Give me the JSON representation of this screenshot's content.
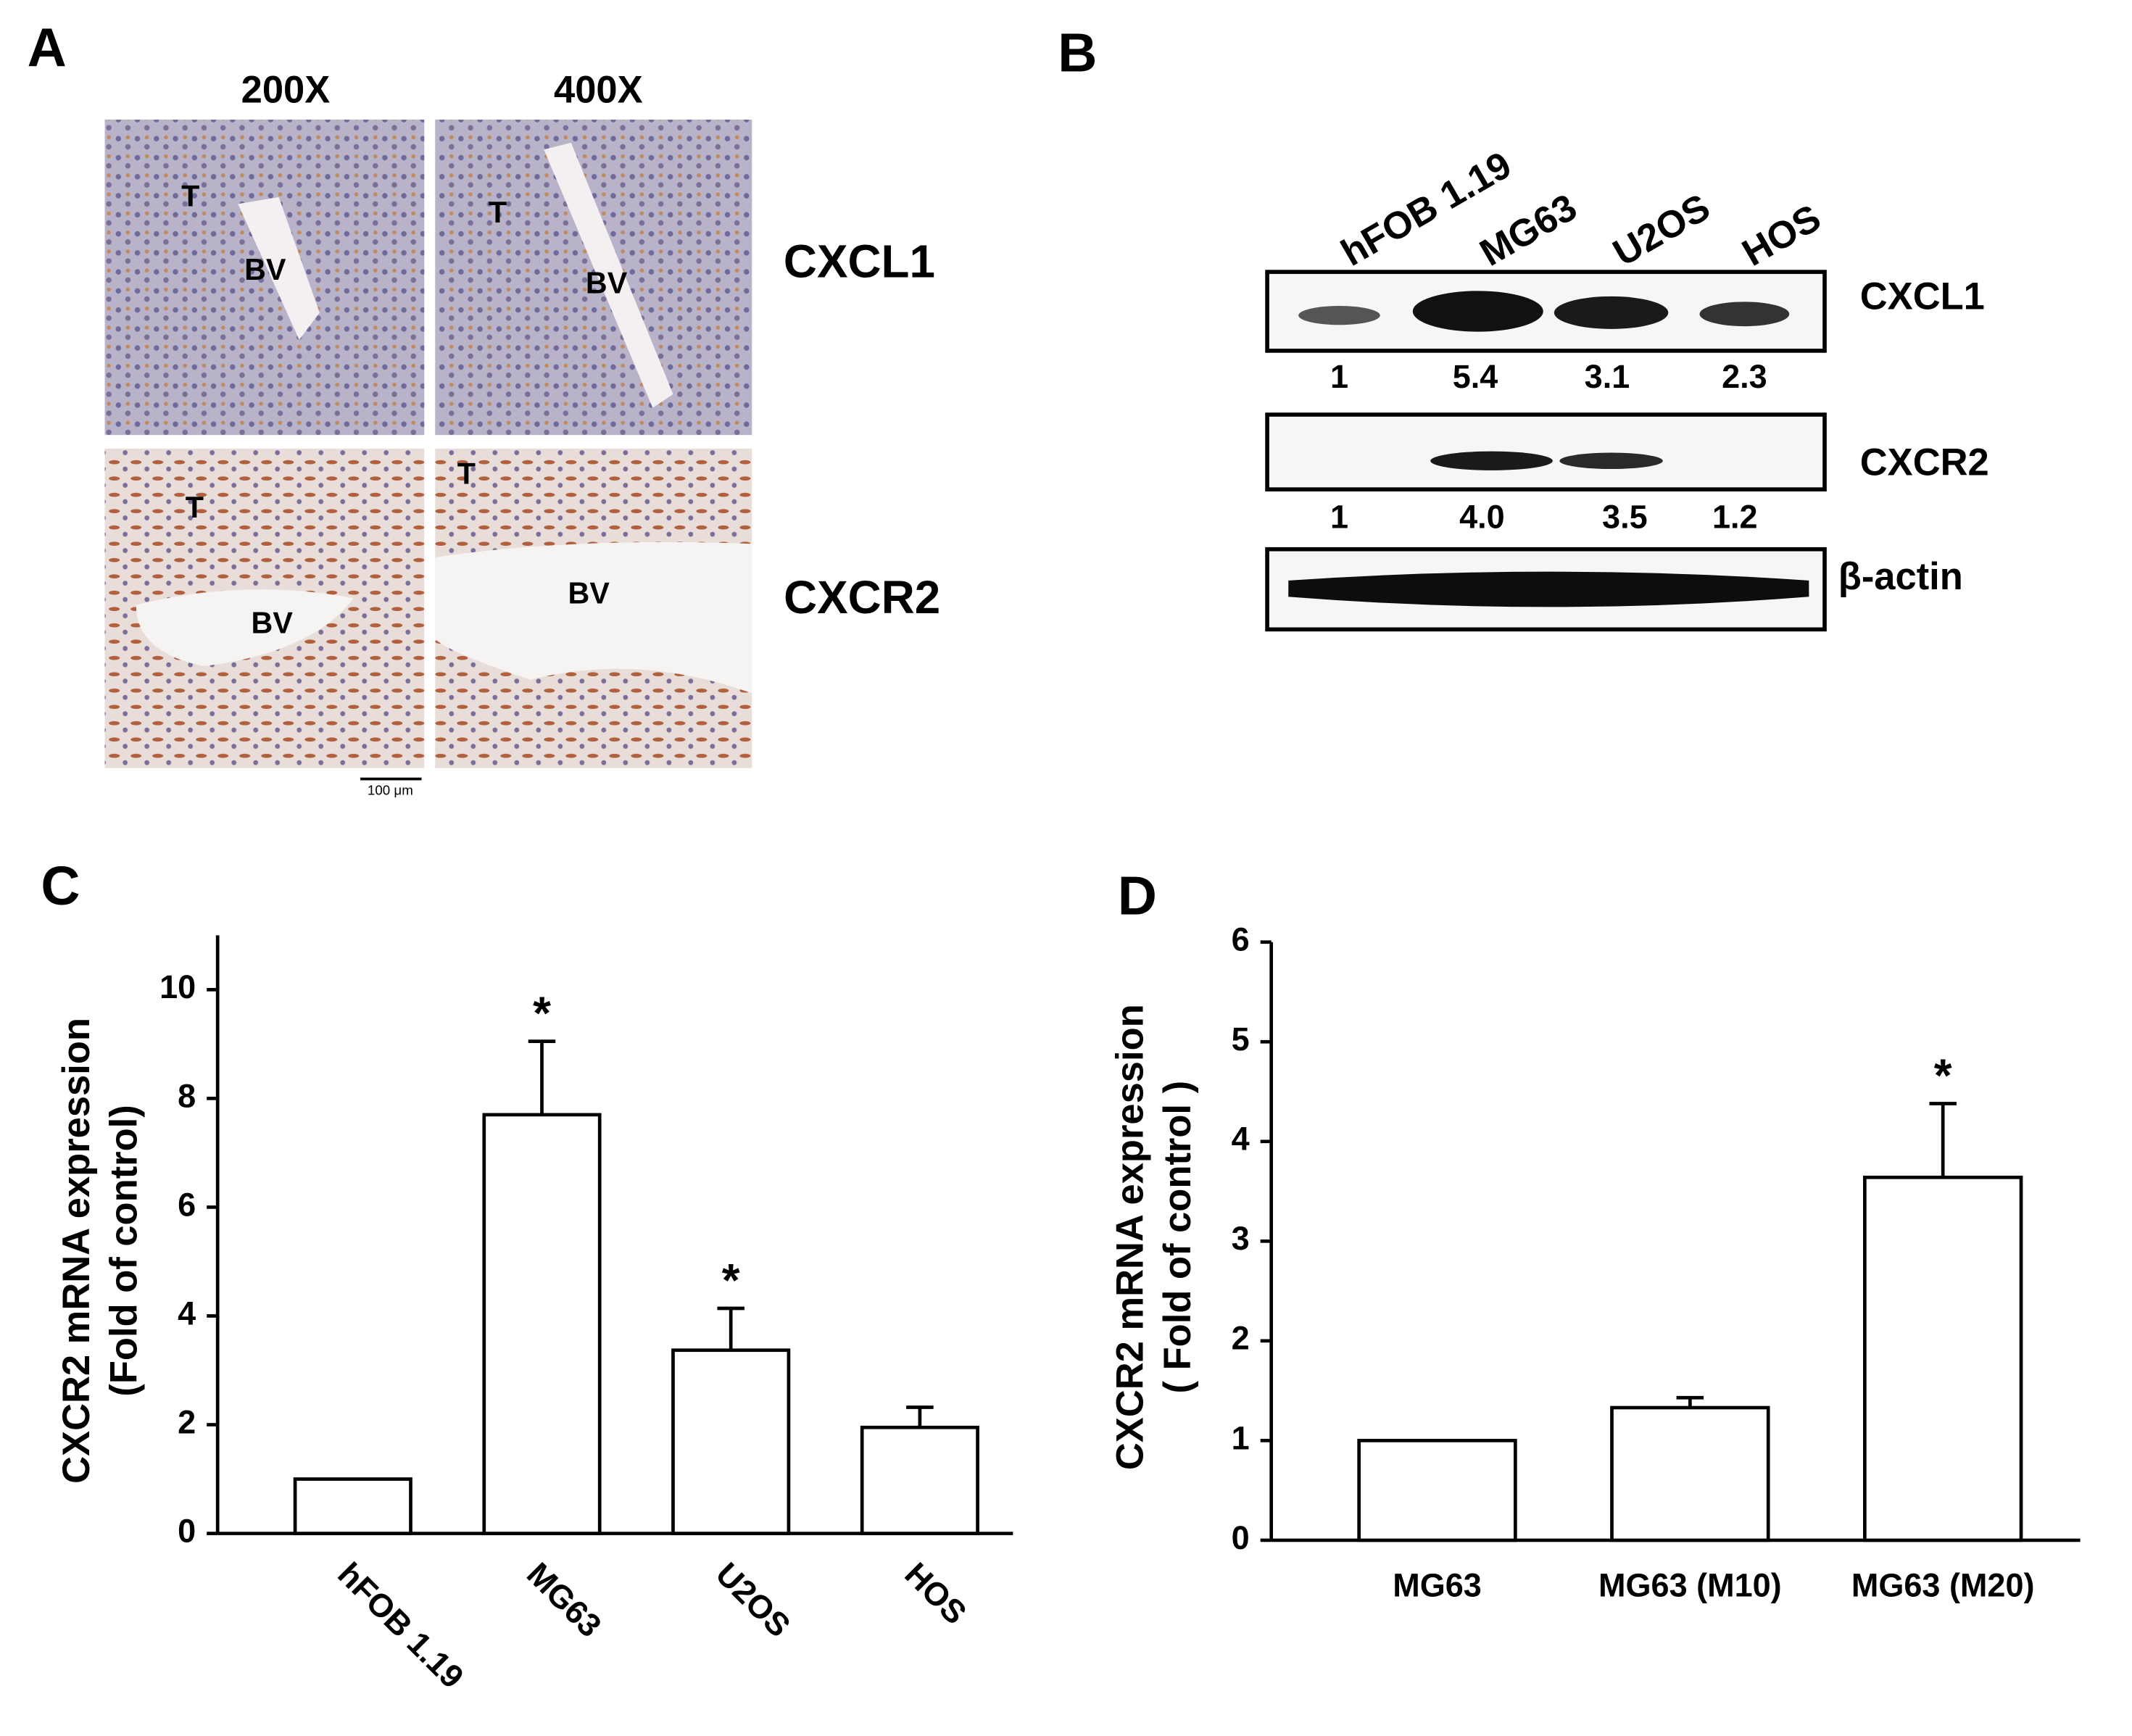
{
  "panel_a": {
    "label": "A",
    "columns": [
      "200X",
      "400X"
    ],
    "rows": [
      "CXCL1",
      "CXCR2"
    ],
    "annotations": [
      "T",
      "BV"
    ],
    "scale_bar": "100 μm"
  },
  "panel_b": {
    "label": "B",
    "lanes": [
      "hFOB 1.19",
      "MG63",
      "U2OS",
      "HOS"
    ],
    "blots": [
      {
        "name": "CXCL1",
        "quantification": [
          "1",
          "5.4",
          "3.1",
          "2.3"
        ]
      },
      {
        "name": "CXCR2",
        "quantification": [
          "1",
          "4.0",
          "3.5",
          "1.2"
        ]
      },
      {
        "name": "β-actin"
      }
    ]
  },
  "chart_data": [
    {
      "type": "bar",
      "panel": "C",
      "y_label": [
        "CXCR2 mRNA expression",
        "(Fold of control)"
      ],
      "categories": [
        "hFOB 1.19",
        "MG63",
        "U2OS",
        "HOS"
      ],
      "values": [
        1,
        7.7,
        3.37,
        1.95
      ],
      "errors": [
        null,
        1.35,
        0.77,
        0.37
      ],
      "significance": [
        null,
        "*",
        "*",
        null
      ],
      "ylim": [
        0,
        11
      ],
      "yticks": [
        0,
        2,
        4,
        6,
        8,
        10
      ],
      "color": "#ffffff",
      "x_label_rotation": 45
    },
    {
      "type": "bar",
      "panel": "D",
      "y_label": [
        "CXCR2 mRNA expression",
        "( Fold of control )"
      ],
      "categories": [
        "MG63",
        "MG63 (M10)",
        "MG63 (M20)"
      ],
      "values": [
        1,
        1.33,
        3.64
      ],
      "errors": [
        null,
        0.1,
        0.74
      ],
      "significance": [
        null,
        null,
        "*"
      ],
      "ylim": [
        0,
        6
      ],
      "yticks": [
        0,
        1,
        2,
        3,
        4,
        5,
        6
      ],
      "color": "#ffffff",
      "x_label_rotation": 0
    }
  ]
}
